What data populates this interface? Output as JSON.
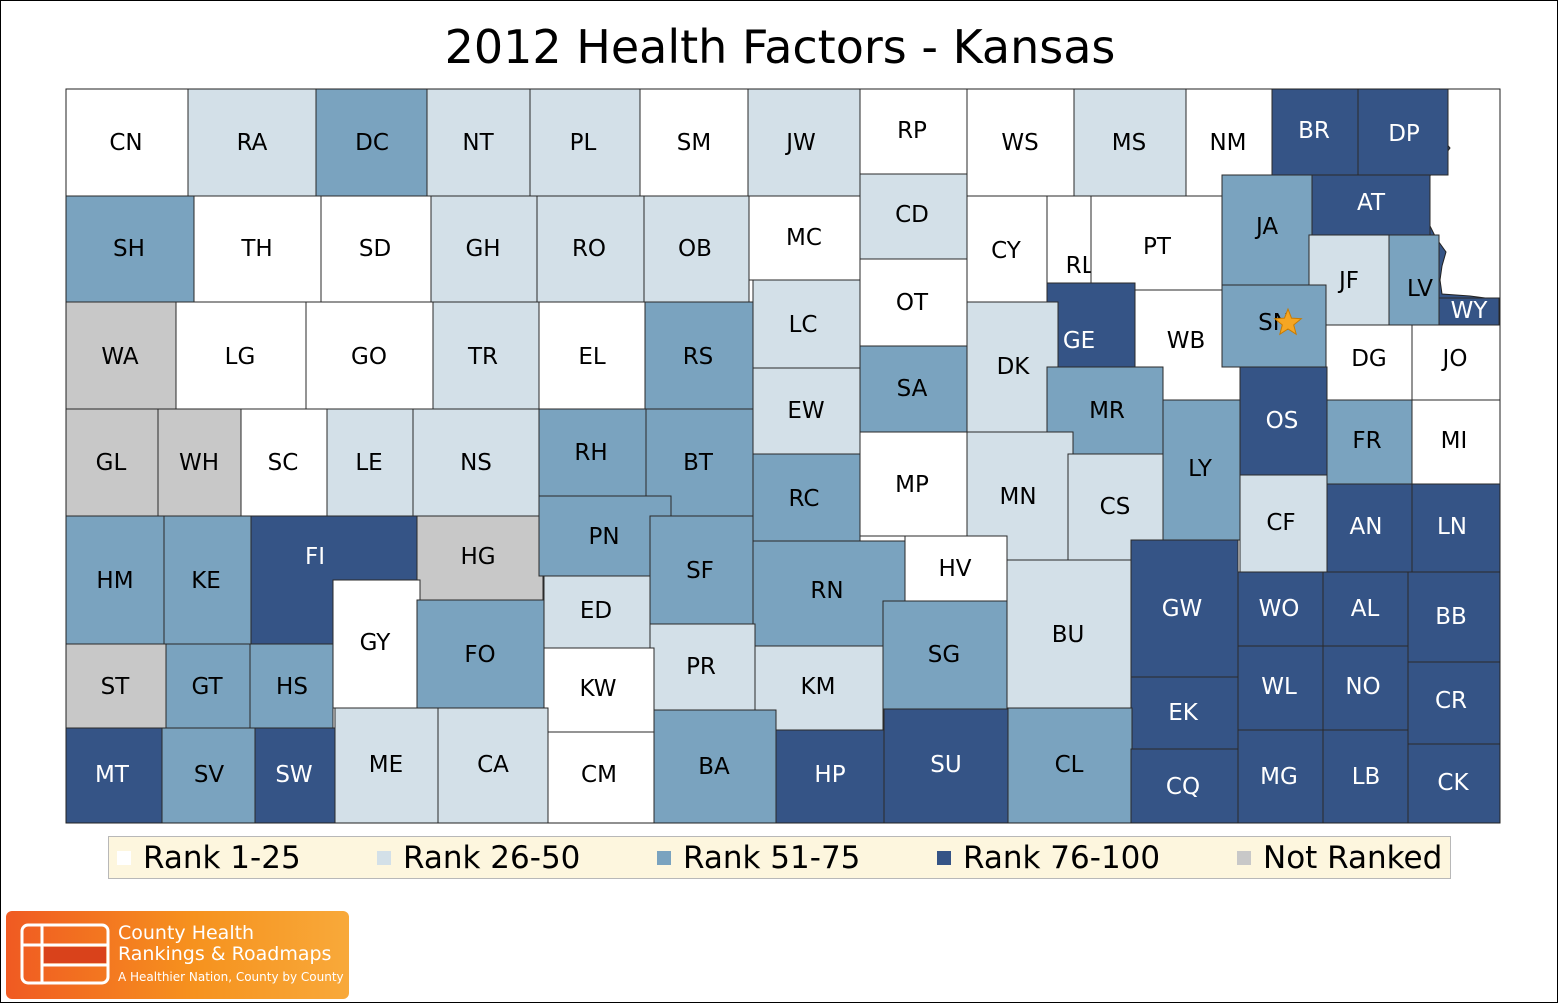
{
  "title": "2012 Health Factors - Kansas",
  "colors": {
    "rank_1_25": "#ffffff",
    "rank_26_50": "#d3e0e8",
    "rank_51_75": "#7aa3bf",
    "rank_76_100": "#355486",
    "not_ranked": "#c8c8c8",
    "star": "#f5a623"
  },
  "legend": [
    {
      "label": "Rank 1-25",
      "cat": "r1"
    },
    {
      "label": "Rank 26-50",
      "cat": "r2"
    },
    {
      "label": "Rank 51-75",
      "cat": "r3"
    },
    {
      "label": "Rank 76-100",
      "cat": "r4"
    },
    {
      "label": "Not Ranked",
      "cat": "nr"
    }
  ],
  "marker": {
    "icon": "star-icon",
    "county": "SN"
  },
  "counties": [
    {
      "code": "CN",
      "cat": "r1"
    },
    {
      "code": "RA",
      "cat": "r2"
    },
    {
      "code": "DC",
      "cat": "r3"
    },
    {
      "code": "NT",
      "cat": "r2"
    },
    {
      "code": "PL",
      "cat": "r2"
    },
    {
      "code": "SM",
      "cat": "r1"
    },
    {
      "code": "JW",
      "cat": "r2"
    },
    {
      "code": "RP",
      "cat": "r1"
    },
    {
      "code": "WS",
      "cat": "r1"
    },
    {
      "code": "MS",
      "cat": "r2"
    },
    {
      "code": "NM",
      "cat": "r1"
    },
    {
      "code": "BR",
      "cat": "r4"
    },
    {
      "code": "DP",
      "cat": "r4"
    },
    {
      "code": "SH",
      "cat": "r3"
    },
    {
      "code": "TH",
      "cat": "r1"
    },
    {
      "code": "SD",
      "cat": "r1"
    },
    {
      "code": "GH",
      "cat": "r2"
    },
    {
      "code": "RO",
      "cat": "r2"
    },
    {
      "code": "OB",
      "cat": "r2"
    },
    {
      "code": "MC",
      "cat": "r1"
    },
    {
      "code": "CD",
      "cat": "r2"
    },
    {
      "code": "CY",
      "cat": "r1"
    },
    {
      "code": "RL",
      "cat": "r1"
    },
    {
      "code": "PT",
      "cat": "r1"
    },
    {
      "code": "JA",
      "cat": "r3"
    },
    {
      "code": "AT",
      "cat": "r4"
    },
    {
      "code": "JF",
      "cat": "r2"
    },
    {
      "code": "LV",
      "cat": "r3"
    },
    {
      "code": "WY",
      "cat": "r4"
    },
    {
      "code": "WA",
      "cat": "nr"
    },
    {
      "code": "LG",
      "cat": "r1"
    },
    {
      "code": "GO",
      "cat": "r1"
    },
    {
      "code": "TR",
      "cat": "r2"
    },
    {
      "code": "EL",
      "cat": "r1"
    },
    {
      "code": "RS",
      "cat": "r3"
    },
    {
      "code": "LC",
      "cat": "r2"
    },
    {
      "code": "OT",
      "cat": "r1"
    },
    {
      "code": "GE",
      "cat": "r4"
    },
    {
      "code": "WB",
      "cat": "r1"
    },
    {
      "code": "SN",
      "cat": "r3"
    },
    {
      "code": "DG",
      "cat": "r1"
    },
    {
      "code": "JO",
      "cat": "r1"
    },
    {
      "code": "SA",
      "cat": "r3"
    },
    {
      "code": "DK",
      "cat": "r2"
    },
    {
      "code": "EW",
      "cat": "r2"
    },
    {
      "code": "MR",
      "cat": "r3"
    },
    {
      "code": "OS",
      "cat": "r4"
    },
    {
      "code": "FR",
      "cat": "r3"
    },
    {
      "code": "MI",
      "cat": "r1"
    },
    {
      "code": "GL",
      "cat": "nr"
    },
    {
      "code": "WH",
      "cat": "nr"
    },
    {
      "code": "SC",
      "cat": "r1"
    },
    {
      "code": "LE",
      "cat": "r2"
    },
    {
      "code": "NS",
      "cat": "r2"
    },
    {
      "code": "RH",
      "cat": "r3"
    },
    {
      "code": "BT",
      "cat": "r3"
    },
    {
      "code": "RC",
      "cat": "r3"
    },
    {
      "code": "MP",
      "cat": "r1"
    },
    {
      "code": "MN",
      "cat": "r2"
    },
    {
      "code": "CS",
      "cat": "r2"
    },
    {
      "code": "LY",
      "cat": "r3"
    },
    {
      "code": "CF",
      "cat": "r2"
    },
    {
      "code": "AN",
      "cat": "r4"
    },
    {
      "code": "LN",
      "cat": "r4"
    },
    {
      "code": "HM",
      "cat": "r3"
    },
    {
      "code": "KE",
      "cat": "r3"
    },
    {
      "code": "FI",
      "cat": "r4"
    },
    {
      "code": "HG",
      "cat": "nr"
    },
    {
      "code": "PN",
      "cat": "r3"
    },
    {
      "code": "SF",
      "cat": "r3"
    },
    {
      "code": "RN",
      "cat": "r3"
    },
    {
      "code": "HV",
      "cat": "r1"
    },
    {
      "code": "BU",
      "cat": "r2"
    },
    {
      "code": "GW",
      "cat": "r4"
    },
    {
      "code": "WO",
      "cat": "r4"
    },
    {
      "code": "AL",
      "cat": "r4"
    },
    {
      "code": "BB",
      "cat": "r4"
    },
    {
      "code": "GY",
      "cat": "r1"
    },
    {
      "code": "ED",
      "cat": "r2"
    },
    {
      "code": "FO",
      "cat": "r3"
    },
    {
      "code": "PR",
      "cat": "r2"
    },
    {
      "code": "SG",
      "cat": "r3"
    },
    {
      "code": "ST",
      "cat": "nr"
    },
    {
      "code": "GT",
      "cat": "r3"
    },
    {
      "code": "HS",
      "cat": "r3"
    },
    {
      "code": "KW",
      "cat": "r1"
    },
    {
      "code": "KM",
      "cat": "r2"
    },
    {
      "code": "EK",
      "cat": "r4"
    },
    {
      "code": "WL",
      "cat": "r4"
    },
    {
      "code": "NO",
      "cat": "r4"
    },
    {
      "code": "CR",
      "cat": "r4"
    },
    {
      "code": "MT",
      "cat": "r4"
    },
    {
      "code": "SV",
      "cat": "r3"
    },
    {
      "code": "SW",
      "cat": "r4"
    },
    {
      "code": "ME",
      "cat": "r2"
    },
    {
      "code": "CA",
      "cat": "r2"
    },
    {
      "code": "CM",
      "cat": "r1"
    },
    {
      "code": "BA",
      "cat": "r3"
    },
    {
      "code": "HP",
      "cat": "r4"
    },
    {
      "code": "SU",
      "cat": "r4"
    },
    {
      "code": "CL",
      "cat": "r3"
    },
    {
      "code": "CQ",
      "cat": "r4"
    },
    {
      "code": "MG",
      "cat": "r4"
    },
    {
      "code": "LB",
      "cat": "r4"
    },
    {
      "code": "CK",
      "cat": "r4"
    }
  ],
  "logo": {
    "line1": "County Health",
    "line2": "Rankings & Roadmaps",
    "tagline": "A Healthier Nation, County by County"
  }
}
